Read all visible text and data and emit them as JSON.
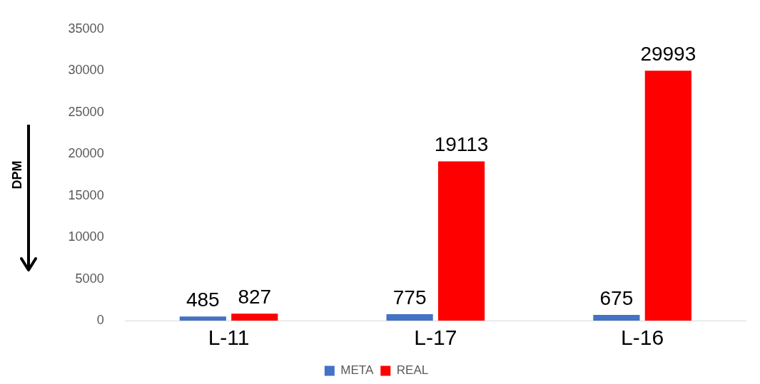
{
  "chart_data": {
    "type": "bar",
    "ylabel": "DPM",
    "categories": [
      "L-11",
      "L-17",
      "L-16"
    ],
    "series": [
      {
        "name": "META",
        "color": "#4472c4",
        "values": [
          485,
          775,
          675
        ]
      },
      {
        "name": "REAL",
        "color": "#ff0000",
        "values": [
          827,
          19113,
          29993
        ]
      }
    ],
    "ylim": [
      0,
      35000
    ],
    "yticks": [
      0,
      5000,
      10000,
      15000,
      20000,
      25000,
      30000,
      35000
    ],
    "grid": false,
    "legend": "bottom",
    "data_labels": true
  }
}
